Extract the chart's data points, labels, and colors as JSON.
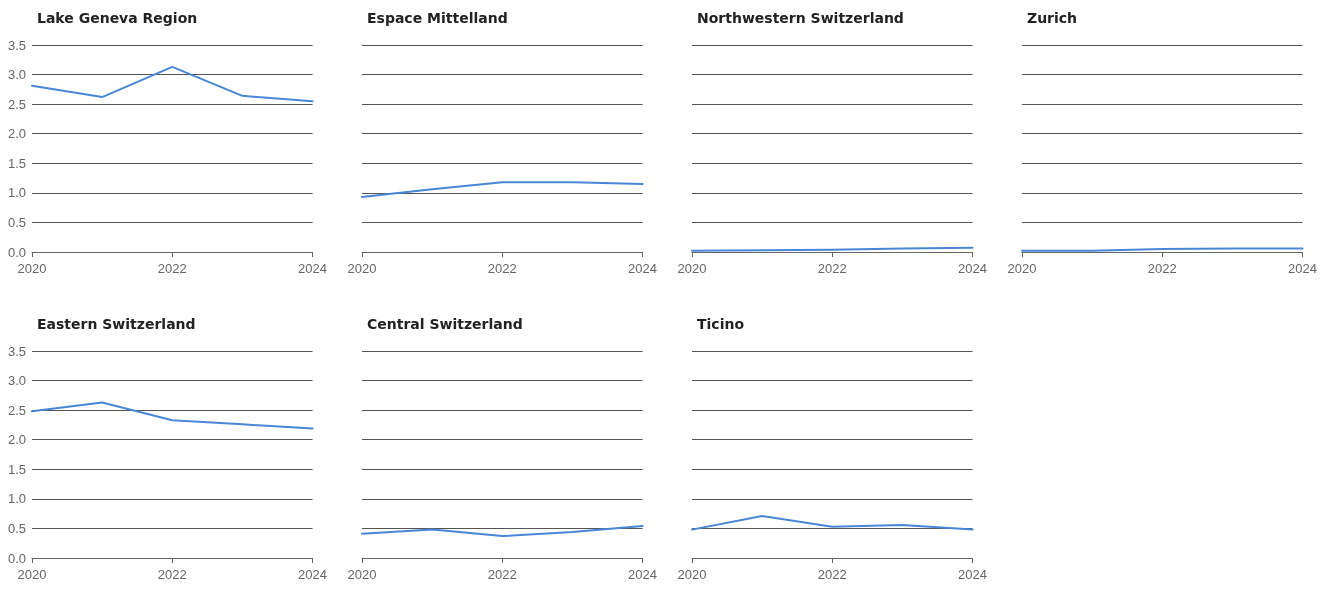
{
  "chart_data": [
    {
      "type": "line",
      "title": "Lake Geneva Region",
      "x": [
        2020,
        2021,
        2022,
        2023,
        2024
      ],
      "values": [
        2.81,
        2.62,
        3.13,
        2.64,
        2.55
      ],
      "color": "#4a86d8",
      "xlim": [
        2020,
        2024
      ],
      "xticks": [
        2020,
        2022,
        2024
      ],
      "ylim": [
        0,
        3.5
      ],
      "yticks": [
        {
          "value": 0,
          "label": "0.0"
        },
        0.5,
        {
          "value": 1,
          "label": "1.0"
        },
        1.5,
        {
          "value": 2,
          "label": "2.0"
        },
        2.5,
        {
          "value": 3,
          "label": "3.0"
        },
        3.5
      ],
      "grid": "y"
    },
    {
      "type": "line",
      "title": "Espace Mittelland",
      "x": [
        2020,
        2021,
        2022,
        2023,
        2024
      ],
      "values": [
        0.93,
        1.06,
        1.18,
        1.18,
        1.15
      ],
      "color": "#4a86d8",
      "xlim": [
        2020,
        2024
      ],
      "xticks": [
        2020,
        2022,
        2024
      ],
      "ylim": [
        0,
        3.5
      ],
      "yticks": [
        0,
        0.5,
        1,
        1.5,
        2,
        2.5,
        3,
        3.5
      ],
      "grid": "y",
      "tick_labels": "x"
    },
    {
      "type": "line",
      "title": "Northwestern Switzerland",
      "x": [
        2020,
        2021,
        2022,
        2023,
        2024
      ],
      "values": [
        0.02,
        0.03,
        0.04,
        0.06,
        0.07
      ],
      "color": "#4a86d8",
      "xlim": [
        2020,
        2024
      ],
      "xticks": [
        2020,
        2022,
        2024
      ],
      "ylim": [
        0,
        3.5
      ],
      "yticks": [
        0,
        0.5,
        1,
        1.5,
        2,
        2.5,
        3,
        3.5
      ],
      "grid": "y",
      "tick_labels": "x"
    },
    {
      "type": "line",
      "title": "Zurich",
      "x": [
        2020,
        2021,
        2022,
        2023,
        2024
      ],
      "values": [
        0.02,
        0.02,
        0.05,
        0.06,
        0.06
      ],
      "color": "#4a86d8",
      "xlim": [
        2020,
        2024
      ],
      "xticks": [
        2020,
        2022,
        2024
      ],
      "ylim": [
        0,
        3.5
      ],
      "yticks": [
        0,
        0.5,
        1,
        1.5,
        2,
        2.5,
        3,
        3.5
      ],
      "grid": "y",
      "tick_labels": "x"
    },
    {
      "type": "line",
      "title": "Eastern Switzerland",
      "x": [
        2020,
        2021,
        2022,
        2023,
        2024
      ],
      "values": [
        2.48,
        2.63,
        2.33,
        2.26,
        2.19
      ],
      "color": "#4a86d8",
      "xlim": [
        2020,
        2024
      ],
      "xticks": [
        2020,
        2022,
        2024
      ],
      "ylim": [
        0,
        3.5
      ],
      "yticks": [
        {
          "value": 0,
          "label": "0.0"
        },
        0.5,
        {
          "value": 1,
          "label": "1.0"
        },
        1.5,
        {
          "value": 2,
          "label": "2.0"
        },
        2.5,
        {
          "value": 3,
          "label": "3.0"
        },
        3.5
      ],
      "grid": "y"
    },
    {
      "type": "line",
      "title": "Central Switzerland",
      "x": [
        2020,
        2021,
        2022,
        2023,
        2024
      ],
      "values": [
        0.41,
        0.48,
        0.37,
        0.44,
        0.54
      ],
      "color": "#4a86d8",
      "xlim": [
        2020,
        2024
      ],
      "xticks": [
        2020,
        2022,
        2024
      ],
      "ylim": [
        0,
        3.5
      ],
      "yticks": [
        0,
        0.5,
        1,
        1.5,
        2,
        2.5,
        3,
        3.5
      ],
      "grid": "y",
      "tick_labels": "x"
    },
    {
      "type": "line",
      "title": "Ticino",
      "x": [
        2020,
        2021,
        2022,
        2023,
        2024
      ],
      "values": [
        0.48,
        0.71,
        0.53,
        0.56,
        0.48
      ],
      "color": "#4a86d8",
      "xlim": [
        2020,
        2024
      ],
      "xticks": [
        2020,
        2022,
        2024
      ],
      "ylim": [
        0,
        3.5
      ],
      "yticks": [
        0,
        0.5,
        1,
        1.5,
        2,
        2.5,
        3,
        3.5
      ],
      "grid": "y",
      "tick_labels": "x"
    }
  ]
}
